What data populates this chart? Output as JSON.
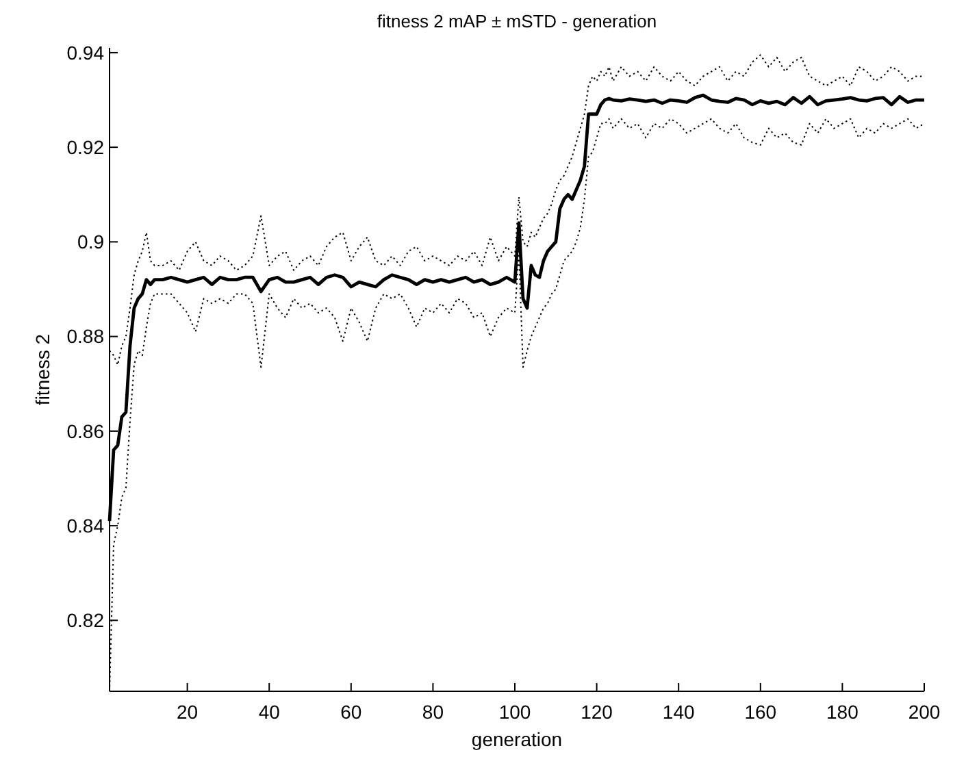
{
  "chart_data": {
    "type": "line",
    "title": "fitness 2 mAP ± mSTD - generation",
    "xlabel": "generation",
    "ylabel": "fitness 2",
    "xlim": [
      1,
      200
    ],
    "ylim": [
      0.805,
      0.941
    ],
    "xticks": [
      20,
      40,
      60,
      80,
      100,
      120,
      140,
      160,
      180,
      200
    ],
    "yticks": [
      0.82,
      0.84,
      0.86,
      0.88,
      0.9,
      0.92,
      0.94
    ],
    "x": [
      1,
      2,
      3,
      4,
      5,
      6,
      7,
      8,
      9,
      10,
      11,
      12,
      14,
      16,
      18,
      20,
      22,
      24,
      26,
      28,
      30,
      32,
      34,
      36,
      38,
      40,
      42,
      44,
      46,
      48,
      50,
      52,
      54,
      56,
      58,
      60,
      62,
      64,
      66,
      68,
      70,
      72,
      74,
      76,
      78,
      80,
      82,
      84,
      86,
      88,
      90,
      92,
      94,
      96,
      98,
      100,
      101,
      102,
      103,
      104,
      105,
      106,
      107,
      108,
      109,
      110,
      111,
      112,
      113,
      114,
      115,
      116,
      117,
      118,
      119,
      120,
      121,
      122,
      123,
      124,
      126,
      128,
      130,
      132,
      134,
      136,
      138,
      140,
      142,
      144,
      146,
      148,
      150,
      152,
      154,
      156,
      158,
      160,
      162,
      164,
      166,
      168,
      170,
      172,
      174,
      176,
      178,
      180,
      182,
      184,
      186,
      188,
      190,
      192,
      194,
      196,
      198,
      200
    ],
    "series": [
      {
        "color": "#000000",
        "line_style": "dotted",
        "values": [
          0.877,
          0.876,
          0.874,
          0.878,
          0.88,
          0.886,
          0.893,
          0.896,
          0.898,
          0.902,
          0.896,
          0.895,
          0.895,
          0.896,
          0.894,
          0.898,
          0.9,
          0.896,
          0.895,
          0.897,
          0.896,
          0.894,
          0.895,
          0.897,
          0.9055,
          0.895,
          0.897,
          0.898,
          0.894,
          0.896,
          0.897,
          0.895,
          0.899,
          0.901,
          0.902,
          0.896,
          0.899,
          0.901,
          0.896,
          0.895,
          0.897,
          0.895,
          0.898,
          0.899,
          0.896,
          0.897,
          0.896,
          0.895,
          0.897,
          0.896,
          0.898,
          0.895,
          0.901,
          0.896,
          0.899,
          0.897,
          0.9095,
          0.9,
          0.899,
          0.902,
          0.901,
          0.903,
          0.905,
          0.906,
          0.908,
          0.911,
          0.913,
          0.914,
          0.916,
          0.918,
          0.921,
          0.924,
          0.927,
          0.933,
          0.935,
          0.934,
          0.936,
          0.935,
          0.937,
          0.934,
          0.937,
          0.935,
          0.936,
          0.934,
          0.937,
          0.935,
          0.934,
          0.936,
          0.934,
          0.933,
          0.935,
          0.936,
          0.937,
          0.934,
          0.936,
          0.935,
          0.938,
          0.9395,
          0.937,
          0.939,
          0.936,
          0.938,
          0.939,
          0.935,
          0.934,
          0.933,
          0.934,
          0.935,
          0.933,
          0.937,
          0.936,
          0.934,
          0.935,
          0.937,
          0.936,
          0.934,
          0.935,
          0.935
        ]
      },
      {
        "color": "#000000",
        "line_style": "dotted",
        "values": [
          0.805,
          0.836,
          0.84,
          0.846,
          0.848,
          0.862,
          0.874,
          0.877,
          0.876,
          0.882,
          0.887,
          0.889,
          0.889,
          0.889,
          0.887,
          0.885,
          0.881,
          0.888,
          0.887,
          0.888,
          0.887,
          0.889,
          0.889,
          0.887,
          0.8735,
          0.889,
          0.886,
          0.884,
          0.888,
          0.886,
          0.887,
          0.885,
          0.886,
          0.884,
          0.879,
          0.886,
          0.883,
          0.879,
          0.886,
          0.889,
          0.888,
          0.889,
          0.886,
          0.882,
          0.886,
          0.885,
          0.887,
          0.885,
          0.888,
          0.887,
          0.884,
          0.885,
          0.88,
          0.884,
          0.886,
          0.885,
          0.898,
          0.8735,
          0.877,
          0.88,
          0.882,
          0.884,
          0.886,
          0.887,
          0.889,
          0.89,
          0.893,
          0.896,
          0.897,
          0.898,
          0.9,
          0.903,
          0.909,
          0.918,
          0.919,
          0.922,
          0.925,
          0.925,
          0.926,
          0.924,
          0.926,
          0.924,
          0.925,
          0.922,
          0.925,
          0.924,
          0.926,
          0.925,
          0.923,
          0.924,
          0.925,
          0.926,
          0.924,
          0.923,
          0.925,
          0.922,
          0.921,
          0.9205,
          0.924,
          0.922,
          0.923,
          0.921,
          0.9205,
          0.925,
          0.923,
          0.926,
          0.924,
          0.925,
          0.926,
          0.922,
          0.924,
          0.923,
          0.925,
          0.924,
          0.925,
          0.926,
          0.924,
          0.925
        ]
      },
      {
        "color": "#000000",
        "line_style": "solid",
        "values": [
          0.841,
          0.856,
          0.857,
          0.863,
          0.864,
          0.878,
          0.886,
          0.888,
          0.889,
          0.892,
          0.891,
          0.892,
          0.892,
          0.8925,
          0.892,
          0.8915,
          0.892,
          0.8925,
          0.891,
          0.8925,
          0.892,
          0.892,
          0.8925,
          0.8925,
          0.8895,
          0.892,
          0.8925,
          0.8915,
          0.8915,
          0.892,
          0.8925,
          0.891,
          0.8925,
          0.893,
          0.8925,
          0.8905,
          0.8915,
          0.891,
          0.8905,
          0.892,
          0.893,
          0.8925,
          0.892,
          0.891,
          0.892,
          0.8915,
          0.892,
          0.8915,
          0.892,
          0.8925,
          0.8915,
          0.892,
          0.891,
          0.8915,
          0.8925,
          0.8915,
          0.904,
          0.888,
          0.886,
          0.895,
          0.893,
          0.8925,
          0.896,
          0.898,
          0.899,
          0.9,
          0.907,
          0.909,
          0.91,
          0.909,
          0.911,
          0.913,
          0.916,
          0.927,
          0.927,
          0.927,
          0.929,
          0.93,
          0.9303,
          0.93,
          0.9298,
          0.9302,
          0.93,
          0.9297,
          0.93,
          0.9293,
          0.93,
          0.9298,
          0.9295,
          0.9305,
          0.931,
          0.93,
          0.9297,
          0.9295,
          0.9303,
          0.93,
          0.929,
          0.9298,
          0.9293,
          0.9297,
          0.929,
          0.9305,
          0.9293,
          0.9307,
          0.929,
          0.9298,
          0.93,
          0.9302,
          0.9305,
          0.93,
          0.9298,
          0.9303,
          0.9305,
          0.929,
          0.9307,
          0.9295,
          0.93,
          0.93
        ]
      }
    ]
  }
}
